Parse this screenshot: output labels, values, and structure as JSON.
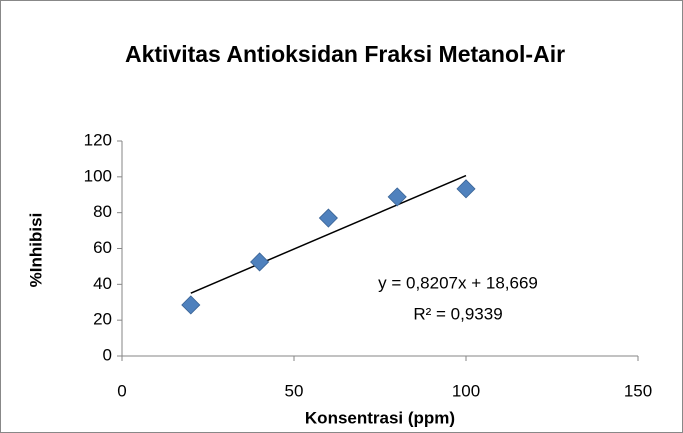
{
  "chart_data": {
    "type": "scatter",
    "title": "Aktivitas Antioksidan Fraksi Metanol-Air",
    "x_label": "Konsentrasi (ppm)",
    "y_label": "%Inhibisi",
    "series": [
      {
        "name": "%Inhibisi",
        "color": "#4f81bd",
        "x": [
          20,
          40,
          60,
          80,
          100
        ],
        "values": [
          28.5,
          52.5,
          77,
          88.8,
          93.3
        ]
      }
    ],
    "trendline": {
      "slope": 0.8207,
      "intercept": 18.669,
      "color": "#000000"
    },
    "annotations": [
      "y = 0,8207x + 18,669",
      "R² = 0,9339"
    ],
    "xlim": [
      0,
      150
    ],
    "xticks": [
      0,
      50,
      100,
      150
    ],
    "ylim": [
      0,
      120
    ],
    "yticks": [
      0,
      20,
      40,
      60,
      80,
      100,
      120
    ],
    "grid": false,
    "legend": false
  }
}
